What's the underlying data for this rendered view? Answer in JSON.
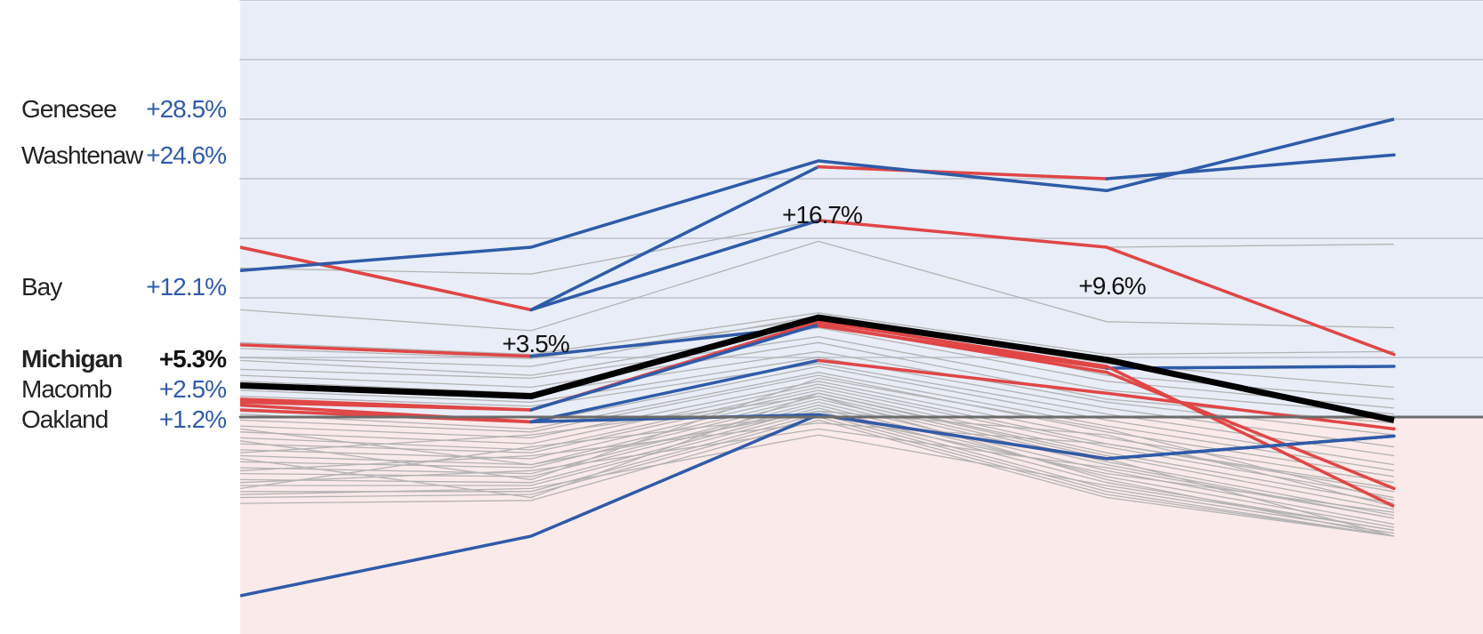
{
  "colors": {
    "positive_zone": "#e8edf7",
    "negative_zone": "#fbeaea",
    "zero_line": "#6b6b6b",
    "gridline": "#c9ccd6",
    "blue": "#2f5ba8",
    "red": "#e04646",
    "gray": "#b3b3b3",
    "michigan": "#000000"
  },
  "labels": [
    {
      "name": "Genesee",
      "value": "+28.5%",
      "style": "blue"
    },
    {
      "name": "Washtenaw",
      "value": "+24.6%",
      "style": "blue"
    },
    {
      "name": "Bay",
      "value": "+12.1%",
      "style": "blue"
    },
    {
      "name": "Michigan",
      "value": "+5.3%",
      "style": "bold"
    },
    {
      "name": "Macomb",
      "value": "+2.5%",
      "style": "blue"
    },
    {
      "name": "Oakland",
      "value": "+1.2%",
      "style": "blue"
    }
  ],
  "annotations": [
    {
      "text": "+3.5%"
    },
    {
      "text": "+16.7%"
    },
    {
      "text": "+9.6%"
    }
  ],
  "chart_data": {
    "type": "line",
    "grid": true,
    "highlighted_series": [
      {
        "name": "Michigan",
        "color": "black",
        "values": [
          5.3,
          3.5,
          16.7,
          9.6,
          -0.5
        ]
      },
      {
        "color": "red-blue",
        "values": [
          28.5,
          18.0,
          42.0,
          40.0,
          44.0
        ],
        "segments": [
          "red",
          "blue",
          "red",
          "blue"
        ]
      },
      {
        "name": "Genesee",
        "color": "red-blue",
        "values": [
          28.5,
          18.0,
          33.0,
          28.5,
          10.5
        ],
        "segments": [
          "red",
          "blue",
          "red",
          "red"
        ]
      },
      {
        "name": "Washtenaw",
        "color": "blue",
        "values": [
          24.6,
          28.5,
          43.0,
          38.0,
          50.0
        ]
      },
      {
        "name": "Bay",
        "color": "red-blue",
        "values": [
          12.1,
          10.2,
          15.3,
          8.2,
          8.5
        ],
        "segments": [
          "red",
          "blue",
          "red",
          "blue"
        ]
      },
      {
        "color": "red",
        "values": [
          3.0,
          1.2,
          16.0,
          8.5,
          -15.0
        ]
      },
      {
        "name": "Macomb",
        "color": "red-blue",
        "values": [
          2.5,
          1.2,
          15.5,
          7.5,
          -12.0
        ],
        "segments": [
          "red",
          "blue",
          "red",
          "red"
        ]
      },
      {
        "name": "Oakland",
        "color": "red-blue",
        "values": [
          1.2,
          -0.8,
          9.5,
          4.0,
          -2.0
        ],
        "segments": [
          "red",
          "blue",
          "red",
          "red"
        ]
      },
      {
        "color": "red-blue",
        "values": [
          2.0,
          -0.8,
          0.4,
          -7.0,
          -3.2
        ],
        "segments": [
          "red",
          "blue",
          "red",
          "blue"
        ]
      },
      {
        "color": "blue",
        "values": [
          -30.0,
          -20.0,
          0.4,
          -7.0,
          -3.2
        ]
      }
    ],
    "background_series": [
      [
        25.0,
        24.0,
        33.0,
        28.5,
        29.0
      ],
      [
        18.0,
        14.5,
        29.5,
        16.0,
        15.0
      ],
      [
        12.5,
        10.5,
        17.5,
        10.5,
        11.0
      ],
      [
        11.5,
        9.8,
        16.5,
        9.0,
        5.0
      ],
      [
        10.0,
        8.5,
        17.0,
        7.0,
        3.0
      ],
      [
        9.5,
        7.0,
        15.0,
        6.0,
        1.5
      ],
      [
        8.0,
        6.5,
        13.5,
        4.5,
        0.5
      ],
      [
        7.0,
        5.0,
        12.5,
        3.0,
        -1.0
      ],
      [
        6.0,
        4.0,
        11.0,
        2.5,
        -3.0
      ],
      [
        4.5,
        2.5,
        10.0,
        1.5,
        -5.0
      ],
      [
        3.5,
        1.8,
        9.0,
        0.5,
        -6.5
      ],
      [
        1.0,
        -1.0,
        8.5,
        -0.5,
        -8.0
      ],
      [
        0.5,
        -2.0,
        7.5,
        -1.5,
        -9.0
      ],
      [
        -0.5,
        -2.5,
        7.0,
        -2.5,
        -10.0
      ],
      [
        -1.5,
        -3.5,
        6.0,
        -3.5,
        -11.0
      ],
      [
        -2.5,
        -4.5,
        5.5,
        -4.5,
        -12.0
      ],
      [
        -3.5,
        -5.5,
        5.0,
        -5.0,
        -13.5
      ],
      [
        -4.5,
        -6.0,
        4.5,
        -6.0,
        -14.5
      ],
      [
        -5.5,
        -7.0,
        4.0,
        -6.5,
        -15.5
      ],
      [
        -6.5,
        -8.0,
        3.5,
        -7.5,
        -16.5
      ],
      [
        -7.5,
        -8.5,
        3.0,
        -8.0,
        -17.0
      ],
      [
        -8.5,
        -9.5,
        2.5,
        -9.0,
        -18.0
      ],
      [
        -9.5,
        -10.0,
        2.0,
        -10.0,
        -18.5
      ],
      [
        -10.5,
        -11.0,
        1.5,
        -11.0,
        -19.0
      ],
      [
        -11.5,
        -11.5,
        1.0,
        -12.0,
        -19.5
      ],
      [
        -12.5,
        -12.5,
        0.5,
        -12.5,
        -20.0
      ],
      [
        -13.5,
        -13.0,
        0.0,
        -13.0,
        -20.0
      ],
      [
        -14.5,
        -14.0,
        -0.5,
        -13.5,
        -20.0
      ],
      [
        -2.0,
        -8.0,
        1.0,
        -3.0,
        -15.0
      ],
      [
        -6.0,
        -3.0,
        3.5,
        -10.5,
        -20.0
      ],
      [
        -9.0,
        -6.5,
        -1.0,
        -4.5,
        -12.5
      ],
      [
        -11.0,
        -9.0,
        -2.0,
        -8.5,
        -17.0
      ],
      [
        -13.0,
        -12.0,
        -3.0,
        -11.5,
        -19.0
      ],
      [
        -4.0,
        -10.5,
        6.5,
        -2.0,
        -14.0
      ],
      [
        -7.0,
        -13.5,
        4.0,
        -7.0,
        -20.0
      ],
      [
        -12.0,
        -5.0,
        0.5,
        -9.5,
        -16.0
      ]
    ]
  }
}
